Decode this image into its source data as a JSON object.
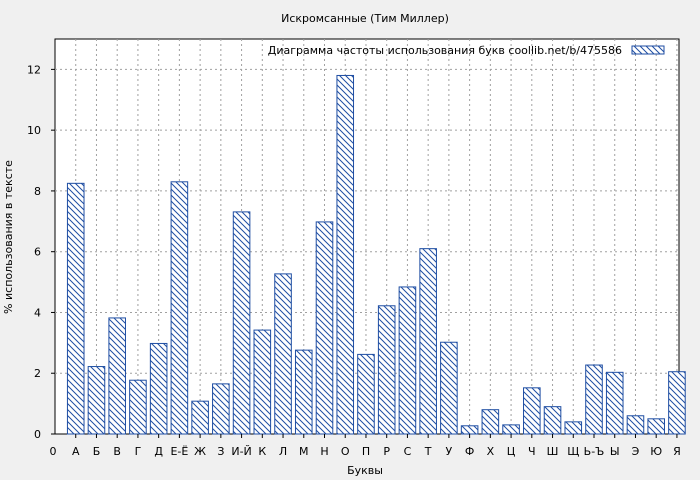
{
  "chart_data": {
    "type": "bar",
    "title": "Искромсанные (Тим Миллер)",
    "xlabel": "Буквы",
    "ylabel": "% использования в тексте",
    "legend": "Диаграмма частоты использования букв  coollib.net/b/475586",
    "legend_position": "top-right",
    "grid": true,
    "ylim": [
      0,
      13
    ],
    "yticks": [
      0,
      2,
      4,
      6,
      8,
      10,
      12
    ],
    "x_start_label": "0",
    "categories": [
      "А",
      "Б",
      "В",
      "Г",
      "Д",
      "Е-Ё",
      "Ж",
      "З",
      "И-Й",
      "К",
      "Л",
      "М",
      "Н",
      "О",
      "П",
      "Р",
      "С",
      "Т",
      "У",
      "Ф",
      "Х",
      "Ц",
      "Ч",
      "Ш",
      "Щ",
      "Ь-Ъ",
      "Ы",
      "Э",
      "Ю",
      "Я"
    ],
    "values": [
      8.25,
      2.22,
      3.82,
      1.77,
      2.98,
      8.3,
      1.08,
      1.65,
      7.31,
      3.42,
      5.27,
      2.76,
      6.98,
      11.8,
      2.62,
      4.22,
      4.84,
      6.1,
      3.02,
      0.27,
      0.8,
      0.3,
      1.52,
      0.9,
      0.4,
      2.27,
      2.03,
      0.6,
      0.5,
      2.05
    ],
    "colors": {
      "bar_stroke": "#1f4ea3",
      "hatch": "#1f4ea3"
    }
  }
}
